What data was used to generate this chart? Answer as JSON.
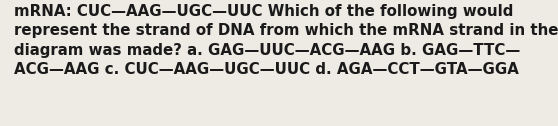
{
  "text": "mRNA: CUC—AAG—UGC—UUC Which of the following would\nrepresent the strand of DNA from which the mRNA strand in the\ndiagram was made? a. GAG—UUC—ACG—AAG b. GAG—TTC—\nACG—AAG c. CUC—AAG—UGC—UUC d. AGA—CCT—GTA—GGA",
  "background_color": "#eeeae4",
  "text_color": "#1a1a1a",
  "font_size": 10.8,
  "font_weight": "bold",
  "fig_width": 5.58,
  "fig_height": 1.26,
  "dpi": 100
}
